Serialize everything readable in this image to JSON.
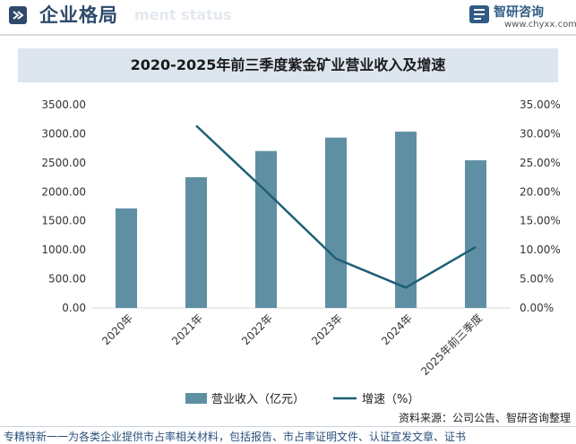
{
  "header": {
    "title": "企业格局",
    "subtitle": "ment status",
    "logo_name": "智研咨询",
    "logo_url": "www.chyxx.com"
  },
  "chart_data": {
    "type": "bar",
    "title": "2020-2025年前三季度紫金矿业营业收入及增速",
    "categories": [
      "2020年",
      "2021年",
      "2022年",
      "2023年",
      "2024年",
      "2025年前三季度"
    ],
    "series": [
      {
        "name": "营业收入（亿元）",
        "kind": "bar",
        "axis": "left",
        "color": "#5f8fa3",
        "values": [
          1715,
          2252,
          2703,
          2934,
          3036,
          2543
        ]
      },
      {
        "name": "增速（%）",
        "kind": "line",
        "axis": "right",
        "color": "#1d5f75",
        "values": [
          null,
          31.4,
          20.1,
          8.5,
          3.5,
          10.5
        ]
      }
    ],
    "y_left": {
      "min": 0,
      "max": 3500,
      "step": 500,
      "ticks": [
        "0.00",
        "500.00",
        "1000.00",
        "1500.00",
        "2000.00",
        "2500.00",
        "3000.00",
        "3500.00"
      ]
    },
    "y_right": {
      "min": 0,
      "max": 35,
      "step": 5,
      "ticks": [
        "0.00%",
        "5.00%",
        "10.00%",
        "15.00%",
        "20.00%",
        "25.00%",
        "30.00%",
        "35.00%"
      ]
    },
    "grid": false,
    "legend_position": "bottom"
  },
  "source_text": "资料来源：公司公告、智研咨询整理",
  "footer_text": "专精特新一一为各类企业提供市占率相关材料，包括报告、市占率证明文件、认证宣发文章、证书",
  "watermark_text": "智研咨询"
}
